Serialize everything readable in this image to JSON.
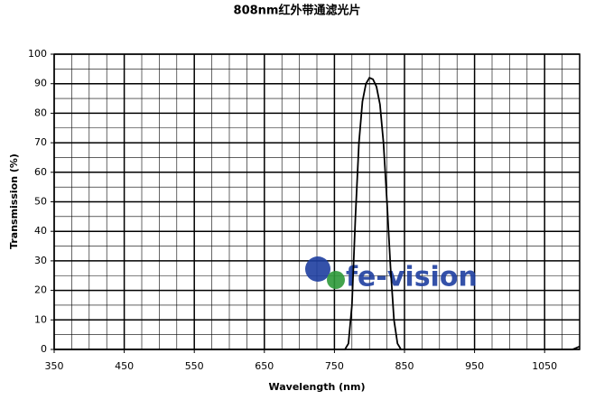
{
  "chart_data": {
    "type": "line",
    "title": "808nm红外带通滤光片",
    "x_label": "Wavelength (nm)",
    "y_label": "Transmission (%)",
    "x": [
      350,
      760,
      765,
      770,
      775,
      780,
      785,
      790,
      795,
      800,
      805,
      810,
      815,
      820,
      825,
      830,
      835,
      840,
      845,
      1090,
      1100
    ],
    "series": [
      {
        "name": "808nm",
        "color": "#000000",
        "values": [
          0,
          0,
          0,
          2,
          15,
          45,
          70,
          84,
          90,
          92,
          91.5,
          89,
          83,
          70,
          50,
          28,
          10,
          2,
          0,
          0,
          1
        ]
      }
    ],
    "xlim": [
      350,
      1100
    ],
    "xticks": [
      350,
      450,
      550,
      650,
      750,
      850,
      950,
      1050
    ],
    "ylim": [
      0,
      100
    ],
    "yticks": [
      0,
      10,
      20,
      30,
      40,
      50,
      60,
      70,
      80,
      90,
      100
    ],
    "grid": true,
    "minor_grid": true,
    "legend": false,
    "watermark": "fe-vision"
  }
}
